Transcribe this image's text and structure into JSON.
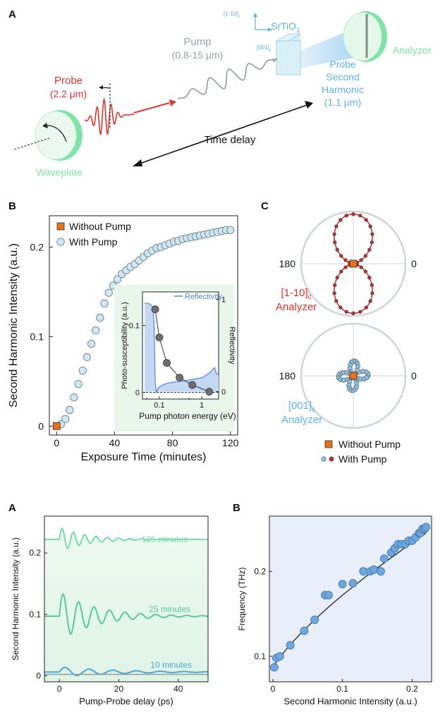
{
  "panel_labels": {
    "top_a": "A",
    "top_b": "B",
    "top_c": "C",
    "bottom_a": "A",
    "bottom_b": "B"
  },
  "schematic": {
    "sample": "SrTiO",
    "sample_sub": "3",
    "axis_1": "[1-10]",
    "axis_1_sub": "c",
    "axis_2": "[001]",
    "axis_2_sub": "c",
    "pump_label": "Pump",
    "pump_range": "(0.8-15 μm)",
    "probe_label": "Probe",
    "probe_wavelength": "(2.2 μm)",
    "shg_line1": "Probe",
    "shg_line2": "Second",
    "shg_line3": "Harmonic",
    "shg_line4": "(1.1 μm)",
    "time_delay": "Time delay",
    "waveplate": "Waveplate",
    "analyzer": "Analyzer",
    "colors": {
      "probe": "#e8322c",
      "pump": "#9aa2a6",
      "shg": "#5ab4e6",
      "optics": "#7ee3a6",
      "sample": "#bfe6ef"
    }
  },
  "chart_data": [
    {
      "id": "B",
      "type": "scatter",
      "xlabel": "Exposure Time (minutes)",
      "ylabel": "Second Harmonic Intensity (a.u.)",
      "xlim": [
        -5,
        125
      ],
      "ylim": [
        -0.01,
        0.235
      ],
      "xticks": [
        "0",
        "40",
        "80",
        "120"
      ],
      "yticks": [
        "0",
        "0.1",
        "0.2"
      ],
      "legend": [
        "Without Pump",
        "With Pump"
      ],
      "legend_position": "top-left",
      "colors": {
        "without_pump": "#e8701a",
        "with_pump": "#cfe6f3"
      },
      "series": [
        {
          "name": "Without Pump",
          "x": [
            0
          ],
          "y": [
            0
          ]
        },
        {
          "name": "With Pump",
          "x": [
            3,
            6,
            9,
            12,
            15,
            18,
            21,
            24,
            27,
            30,
            33,
            36,
            39,
            42,
            45,
            48,
            51,
            54,
            57,
            60,
            63,
            66,
            69,
            72,
            75,
            78,
            81,
            84,
            87,
            90,
            93,
            96,
            99,
            102,
            105,
            108,
            111,
            114,
            117,
            120
          ],
          "y": [
            0.002,
            0.008,
            0.018,
            0.032,
            0.047,
            0.062,
            0.077,
            0.092,
            0.107,
            0.121,
            0.137,
            0.149,
            0.157,
            0.164,
            0.17,
            0.174,
            0.178,
            0.181,
            0.185,
            0.189,
            0.193,
            0.196,
            0.199,
            0.2,
            0.202,
            0.204,
            0.206,
            0.207,
            0.209,
            0.21,
            0.211,
            0.212,
            0.213,
            0.214,
            0.215,
            0.216,
            0.217,
            0.218,
            0.219,
            0.219
          ]
        }
      ]
    },
    {
      "id": "B-inset",
      "type": "line",
      "xlabel": "Pump photon energy (eV)",
      "ylabel": "Photo-susceptibility (a.u.)",
      "y2label": "Reflectivity",
      "xscale": "log",
      "xlim": [
        0.04,
        2.5
      ],
      "ylim": [
        -0.01,
        0.15
      ],
      "y2lim": [
        -0.08,
        1.08
      ],
      "xticks": [
        "0.1",
        "1"
      ],
      "yticks": [
        "0",
        "0.1"
      ],
      "y2ticks": [
        "0",
        "1"
      ],
      "legend": [
        "Reflectivity"
      ],
      "legend_position": "top-right",
      "colors": {
        "reflectivity": "#4f86e0",
        "susceptibility": "#6f6f6f"
      },
      "series": [
        {
          "name": "Photo-susceptibility",
          "x": [
            0.08,
            0.1,
            0.15,
            0.3,
            0.6,
            1.5
          ],
          "y": [
            0.124,
            0.082,
            0.044,
            0.022,
            0.011,
            0.001
          ]
        },
        {
          "name": "Reflectivity",
          "x": [
            0.045,
            0.06,
            0.07,
            0.075,
            0.08,
            0.085,
            0.09,
            0.1,
            0.12,
            0.15,
            0.2,
            0.4,
            1.0,
            1.5,
            2.0,
            2.2,
            2.5
          ],
          "y": [
            0.96,
            0.95,
            0.92,
            0.75,
            0.1,
            -0.01,
            0.02,
            0.05,
            0.07,
            0.09,
            0.1,
            0.12,
            0.15,
            0.2,
            0.26,
            0.2,
            0.18
          ]
        }
      ]
    },
    {
      "id": "C",
      "type": "polar",
      "angle_labels": [
        "180",
        "0"
      ],
      "analyzers": [
        "[1-10]",
        "[001]"
      ],
      "analyzer_sub": "c",
      "analyzer_word": "Analyzer",
      "legend": [
        "Without Pump",
        "With Pump"
      ],
      "colors": {
        "with_pump_1": "#b8302a",
        "with_pump_2": "#8ec4e8",
        "without_pump": "#e8701a",
        "analyzer_1": "#e8322c",
        "analyzer_2": "#5ab4e6"
      }
    },
    {
      "id": "bottom-A",
      "type": "line",
      "xlabel": "Pump-Probe delay (ps)",
      "ylabel": "Second Harmonic Intensity (a.u.)",
      "xlim": [
        -5,
        50
      ],
      "ylim": [
        -0.01,
        0.26
      ],
      "xticks": [
        "0",
        "20",
        "40"
      ],
      "yticks": [
        "0",
        "0.1",
        "0.2"
      ],
      "annotations": [
        "105 minutes",
        "25 minutes",
        "10 minutes"
      ],
      "colors": {
        "trace_105": "#73dca6",
        "trace_25": "#57c79d",
        "trace_10": "#4aa6d8",
        "fill_top": "#eef9f1",
        "fill_bottom": "#dff4e6"
      },
      "series": [
        {
          "name": "105 minutes",
          "base": 0.222,
          "amplitude": 0.02,
          "period_ps": 3.8,
          "decay_ps": 9,
          "onset_ps": 0
        },
        {
          "name": "25 minutes",
          "base": 0.097,
          "amplitude": 0.04,
          "period_ps": 5.2,
          "decay_ps": 12,
          "onset_ps": 0
        },
        {
          "name": "10 minutes",
          "base": 0.006,
          "amplitude": 0.008,
          "period_ps": 8,
          "decay_ps": 18,
          "onset_ps": 0
        }
      ]
    },
    {
      "id": "bottom-B",
      "type": "scatter",
      "xlabel": "Second Harmonic Intensity (a.u.)",
      "ylabel": "Frequency (THz)",
      "xlim": [
        -0.005,
        0.228
      ],
      "ylim": [
        0.07,
        0.265
      ],
      "xticks": [
        "0",
        "0.1",
        "0.2"
      ],
      "yticks": [
        "0.1",
        "0.2"
      ],
      "colors": {
        "points": "#6ea7e0",
        "fit": "#222222",
        "background": "#e8eff8"
      },
      "series": [
        {
          "name": "data",
          "x": [
            0.002,
            0.005,
            0.01,
            0.025,
            0.045,
            0.06,
            0.075,
            0.08,
            0.1,
            0.115,
            0.13,
            0.14,
            0.145,
            0.155,
            0.16,
            0.17,
            0.175,
            0.18,
            0.185,
            0.19,
            0.195,
            0.2,
            0.205,
            0.21,
            0.212,
            0.215,
            0.218,
            0.22
          ],
          "y": [
            0.087,
            0.098,
            0.1,
            0.113,
            0.13,
            0.143,
            0.172,
            0.172,
            0.185,
            0.186,
            0.2,
            0.2,
            0.202,
            0.2,
            0.215,
            0.222,
            0.227,
            0.232,
            0.232,
            0.232,
            0.236,
            0.236,
            0.24,
            0.245,
            0.245,
            0.25,
            0.25,
            0.252
          ]
        },
        {
          "name": "fit",
          "x": [
            0.0,
            0.02,
            0.04,
            0.06,
            0.08,
            0.1,
            0.12,
            0.14,
            0.16,
            0.18,
            0.2,
            0.22
          ],
          "y": [
            0.088,
            0.109,
            0.127,
            0.143,
            0.158,
            0.172,
            0.185,
            0.198,
            0.21,
            0.222,
            0.234,
            0.245
          ]
        }
      ]
    }
  ]
}
